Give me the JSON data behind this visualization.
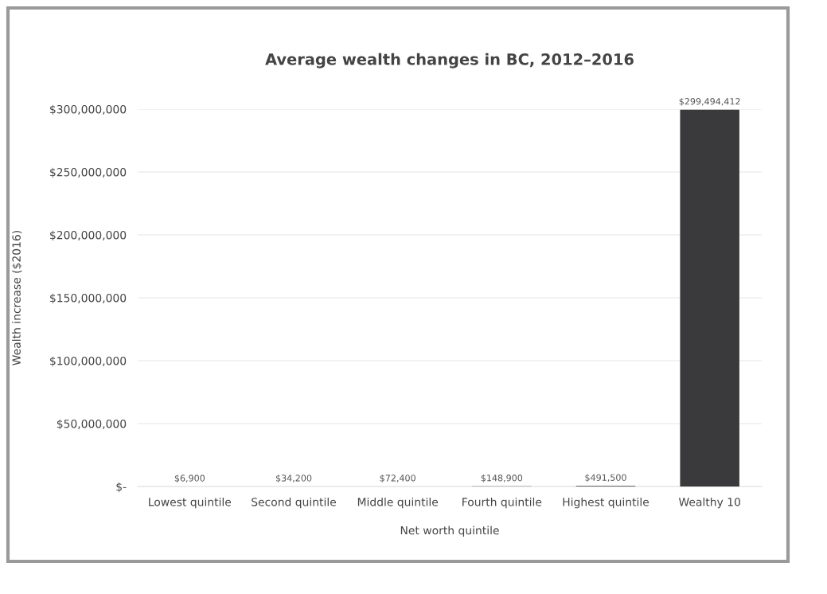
{
  "chart_data": {
    "type": "bar",
    "title": "Average wealth changes in BC, 2012–2016",
    "xlabel": "Net worth quintile",
    "ylabel": "Wealth increase ($2016)",
    "categories": [
      "Lowest quintile",
      "Second quintile",
      "Middle quintile",
      "Fourth quintile",
      "Highest quintile",
      "Wealthy 10"
    ],
    "values": [
      6900,
      34200,
      72400,
      148900,
      491500,
      299494412
    ],
    "value_labels": [
      "$6,900",
      "$34,200",
      "$72,400",
      "$148,900",
      "$491,500",
      "$299,494,412"
    ],
    "color": "#3a3a3c",
    "ylim": [
      0,
      300000000
    ],
    "yticks": [
      {
        "value": 0,
        "label": "$-"
      },
      {
        "value": 50000000,
        "label": "$50,000,000"
      },
      {
        "value": 100000000,
        "label": "$100,000,000"
      },
      {
        "value": 150000000,
        "label": "$150,000,000"
      },
      {
        "value": 200000000,
        "label": "$200,000,000"
      },
      {
        "value": 250000000,
        "label": "$250,000,000"
      },
      {
        "value": 300000000,
        "label": "$300,000,000"
      }
    ],
    "grid": "y"
  }
}
